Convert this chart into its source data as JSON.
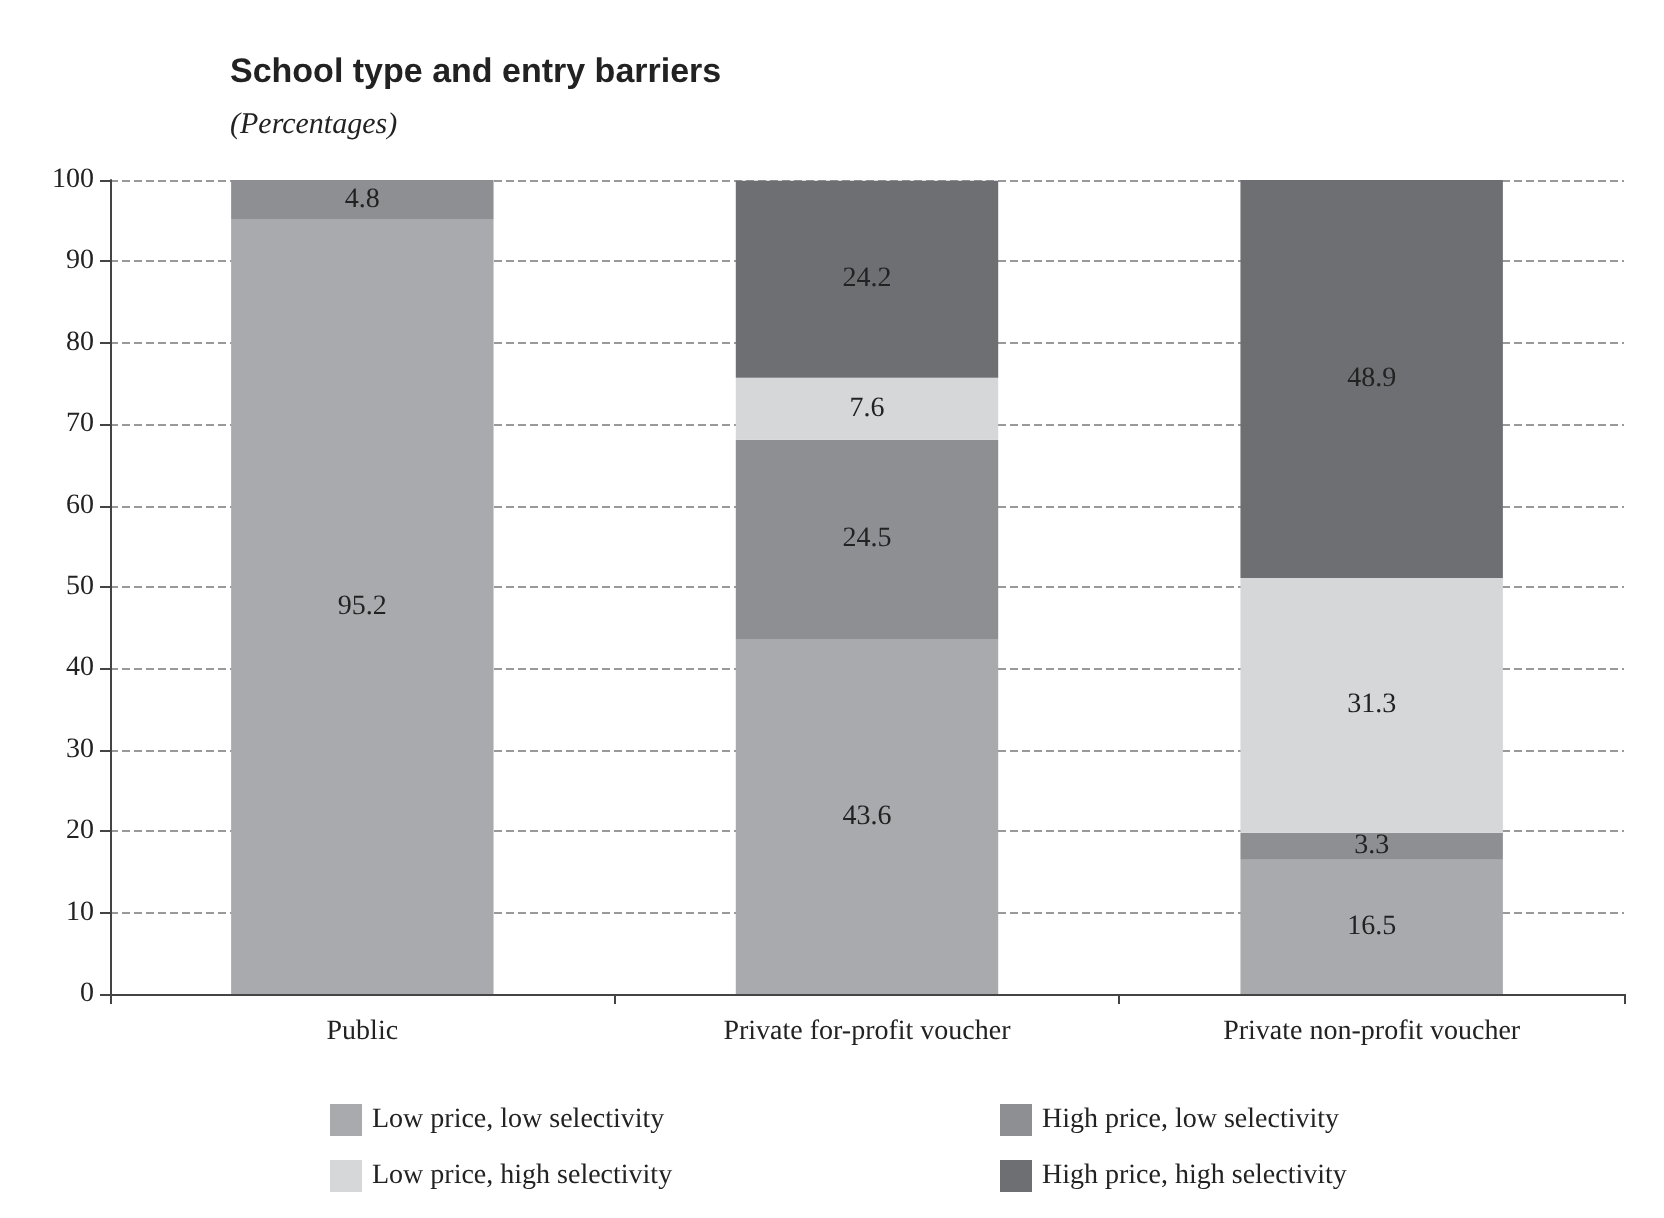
{
  "chart_data": {
    "type": "bar",
    "title": "School type and entry barriers",
    "subtitle": "(Percentages)",
    "categories": [
      "Public",
      "Private for-profit voucher",
      "Private non-profit voucher"
    ],
    "series": [
      {
        "name": "Low price, low selectivity",
        "color": "#a9aaae",
        "values": [
          95.2,
          43.6,
          16.5
        ]
      },
      {
        "name": "High price, low selectivity",
        "color": "#8e8f93",
        "values": [
          4.8,
          24.5,
          3.3
        ]
      },
      {
        "name": "Low price, high selectivity",
        "color": "#d6d7d9",
        "values": [
          null,
          7.6,
          31.3
        ]
      },
      {
        "name": "High price, high selectivity",
        "color": "#6e6f73",
        "values": [
          null,
          24.2,
          48.9
        ]
      }
    ],
    "stacked": true,
    "ylim": [
      0,
      100
    ],
    "yticks": [
      0,
      10,
      20,
      30,
      40,
      50,
      60,
      70,
      80,
      90,
      100
    ],
    "grid": "y",
    "legend": "bottom",
    "data_labels": true
  }
}
